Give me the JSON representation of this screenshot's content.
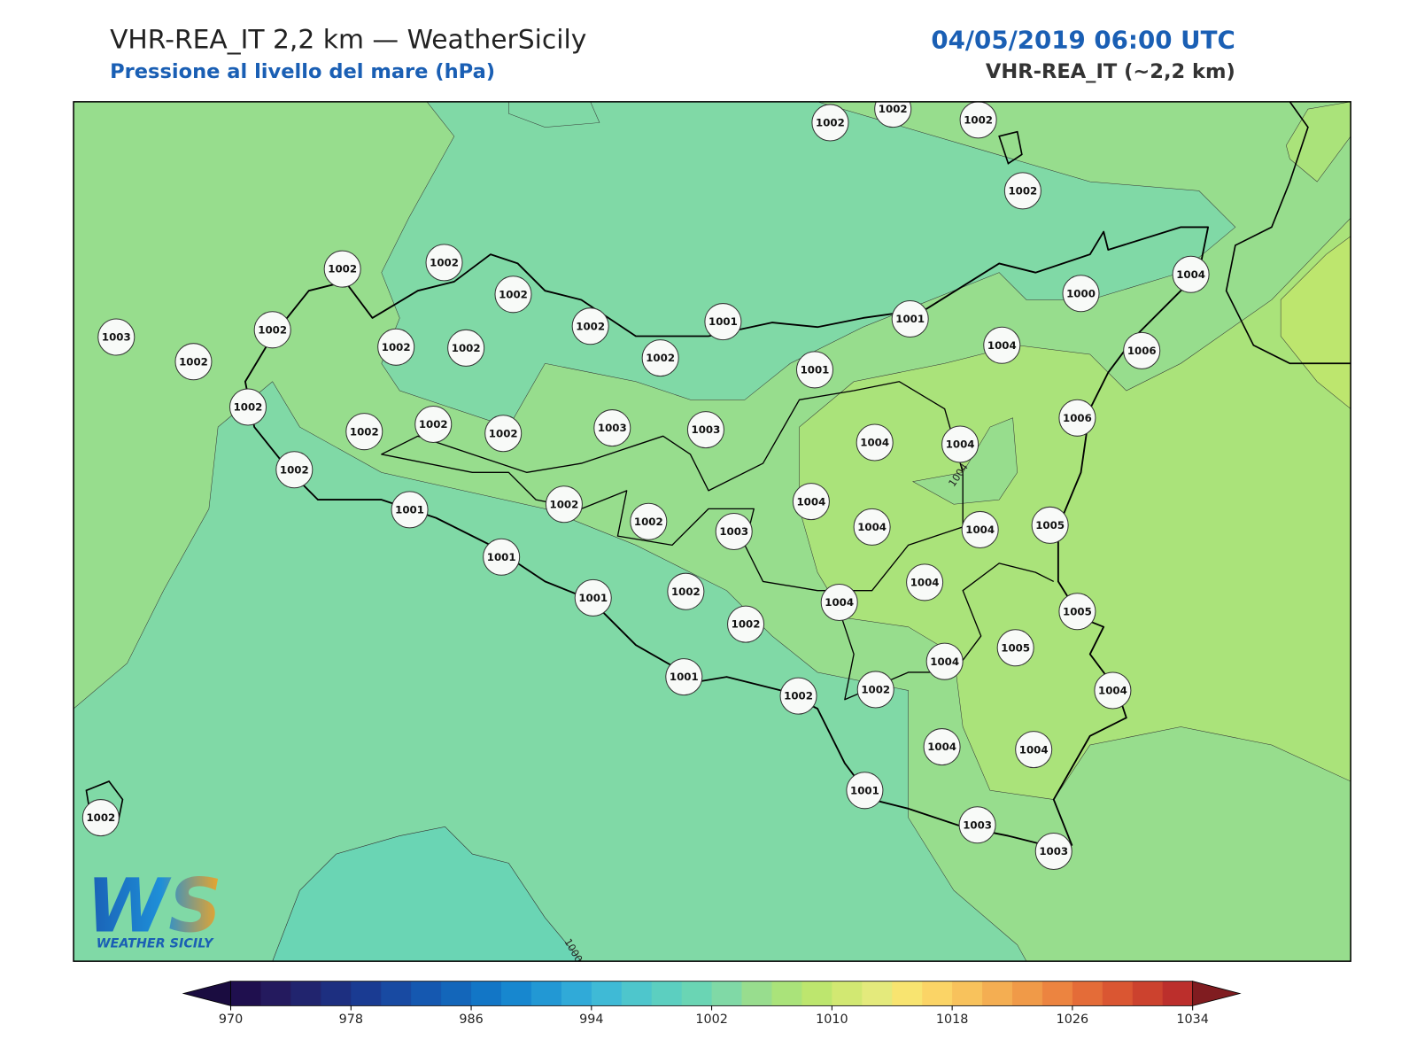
{
  "header": {
    "title": "VHR-REA_IT 2,2 km — WeatherSicily",
    "subtitle": "Pressione al livello del mare (hPa)",
    "datetime": "04/05/2019 06:00 UTC",
    "model": "VHR-REA_IT (~2,2 km)"
  },
  "map": {
    "stations": [
      1002,
      1002,
      1002,
      1002,
      1002,
      1002,
      1002,
      1002,
      1001,
      1001,
      1000,
      1004,
      1003,
      1002,
      1002,
      1002,
      1002,
      1002,
      1001,
      1004,
      1006,
      1002,
      1002,
      1002,
      1002,
      1003,
      1003,
      1004,
      1004,
      1006,
      1002,
      1001,
      1002,
      1002,
      1003,
      1004,
      1004,
      1004,
      1005,
      1001,
      1001,
      1002,
      1002,
      1004,
      1004,
      1005,
      1004,
      1005,
      1001,
      1002,
      1002,
      1004,
      1004,
      1004,
      1001,
      1003,
      1003,
      1002
    ],
    "contour_labels": [
      "1004",
      "1000"
    ],
    "logo": {
      "mark": "WS",
      "text": "WEATHER SICILY"
    }
  },
  "colorbar": {
    "ticks": [
      970,
      978,
      986,
      994,
      1002,
      1010,
      1018,
      1026,
      1034
    ],
    "colors": [
      "#1f0f4e",
      "#241a5e",
      "#21246e",
      "#1d2f80",
      "#1a3b92",
      "#184aa2",
      "#1558b0",
      "#1366ba",
      "#1276c6",
      "#1787cf",
      "#2298d4",
      "#30aad8",
      "#3fbad6",
      "#4ec6cc",
      "#5ccfc0",
      "#6ad5b4",
      "#80d9a6",
      "#98dd8e",
      "#aae37a",
      "#bde66e",
      "#d2e872",
      "#e4ea7c",
      "#f8e470",
      "#fbd466",
      "#f8c25c",
      "#f4ae52",
      "#f09a48",
      "#ec8440",
      "#e46c38",
      "#da5632",
      "#cc422e",
      "#bc2f2c"
    ],
    "under_color": "#1a0c40",
    "over_color": "#801c20"
  }
}
